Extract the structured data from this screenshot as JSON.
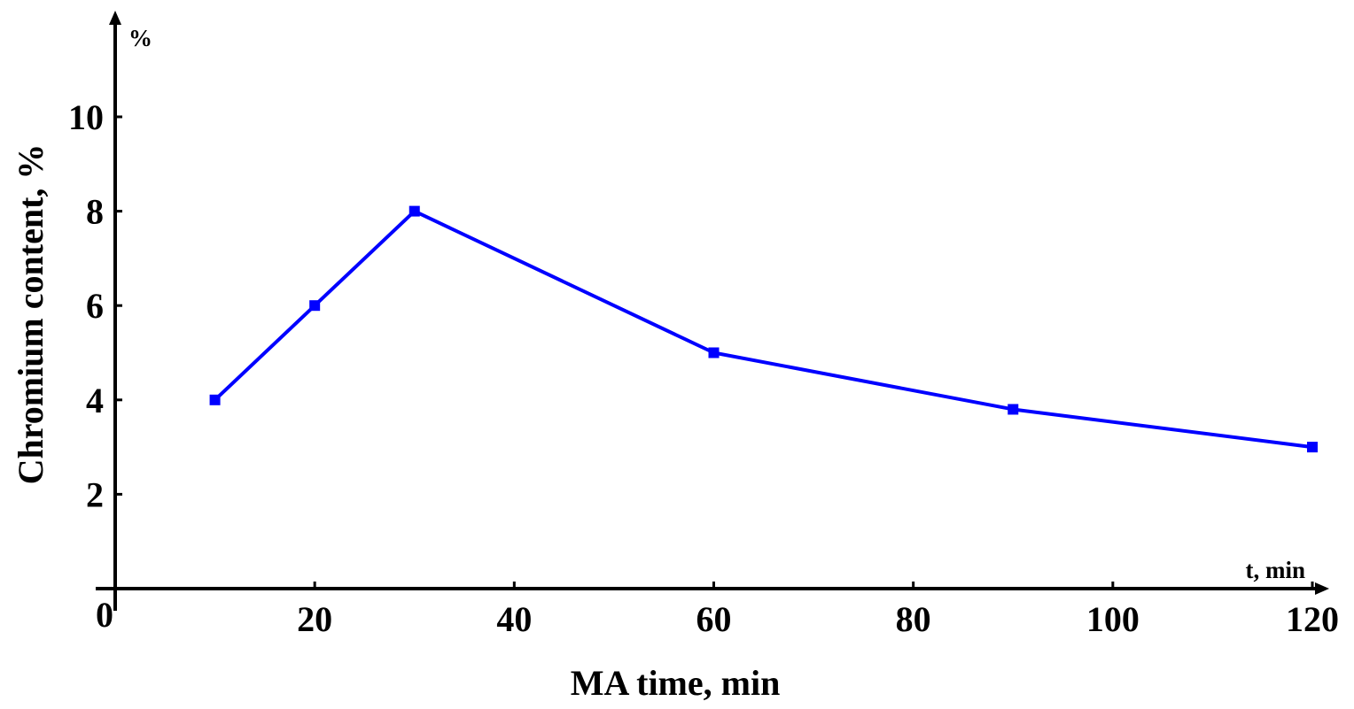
{
  "chart_data": {
    "type": "line",
    "xlabel": "MA time, min",
    "ylabel": "Chromium content, %",
    "x_axis_unit": "t, min",
    "y_axis_unit": "%",
    "origin_label": "0",
    "xlim": [
      0,
      120
    ],
    "ylim": [
      0,
      10
    ],
    "x_ticks": [
      20,
      40,
      60,
      80,
      100,
      120
    ],
    "y_ticks": [
      2,
      4,
      6,
      8,
      10
    ],
    "grid": false,
    "legend": "none",
    "series": [
      {
        "color": "#0000ff",
        "marker": "square",
        "points": [
          {
            "x": 10,
            "y": 4.0
          },
          {
            "x": 20,
            "y": 6.0
          },
          {
            "x": 30,
            "y": 8.0
          },
          {
            "x": 60,
            "y": 5.0
          },
          {
            "x": 90,
            "y": 3.8
          },
          {
            "x": 120,
            "y": 3.0
          }
        ]
      }
    ]
  }
}
